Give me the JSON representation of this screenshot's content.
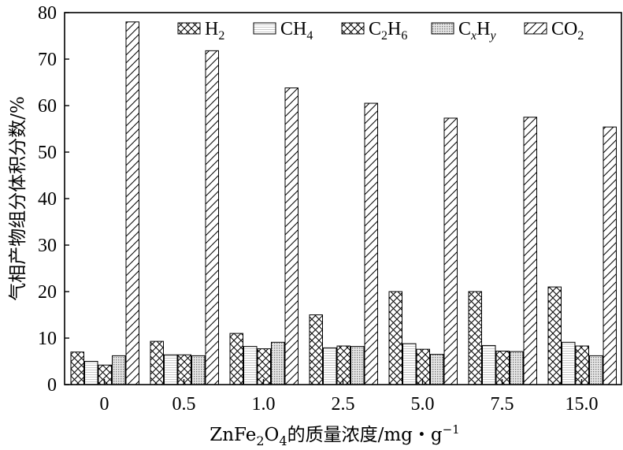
{
  "chart_data": {
    "type": "bar",
    "categories": [
      "0",
      "0.5",
      "1.0",
      "2.5",
      "5.0",
      "7.5",
      "15.0"
    ],
    "series": [
      {
        "name": "H2",
        "pattern": "crosshatch",
        "values": [
          7,
          9.3,
          11,
          15,
          20,
          20,
          21
        ]
      },
      {
        "name": "CH4",
        "pattern": "dense-horizontal",
        "values": [
          5,
          6.4,
          8.2,
          7.9,
          8.8,
          8.4,
          9.1
        ]
      },
      {
        "name": "C2H6",
        "pattern": "crosshatch",
        "values": [
          4.2,
          6.4,
          7.7,
          8.3,
          7.6,
          7.2,
          8.3
        ]
      },
      {
        "name": "CxHy",
        "pattern": "dotted-grid",
        "values": [
          6.2,
          6.2,
          9.1,
          8.2,
          6.5,
          7.1,
          6.2
        ]
      },
      {
        "name": "CO2",
        "pattern": "diagonal",
        "values": [
          78,
          71.8,
          63.8,
          60.5,
          57.3,
          57.5,
          55.4
        ]
      }
    ],
    "legend": {
      "position": "top-right",
      "items": [
        {
          "base": "H",
          "sub1": "2",
          "mid": "",
          "sub2": "",
          "italic1": false,
          "italic2": false
        },
        {
          "base": "CH",
          "sub1": "4",
          "mid": "",
          "sub2": "",
          "italic1": false,
          "italic2": false
        },
        {
          "base": "C",
          "sub1": "2",
          "mid": "H",
          "sub2": "6",
          "italic1": false,
          "italic2": false
        },
        {
          "base": "C",
          "sub1": "x",
          "mid": "H",
          "sub2": "y",
          "italic1": true,
          "italic2": true
        },
        {
          "base": "CO",
          "sub1": "2",
          "mid": "",
          "sub2": "",
          "italic1": false,
          "italic2": false
        }
      ]
    },
    "ylim": [
      0,
      80
    ],
    "yticks": [
      0,
      10,
      20,
      30,
      40,
      50,
      60,
      70,
      80
    ],
    "ylabel": "气相产物组分体积分数/%",
    "xlabel": {
      "pre": "ZnFe",
      "sub1": "2",
      "mid": "O",
      "sub2": "4",
      "post": "的质量浓度/mg・g",
      "sup": "−1"
    },
    "grid": false
  }
}
